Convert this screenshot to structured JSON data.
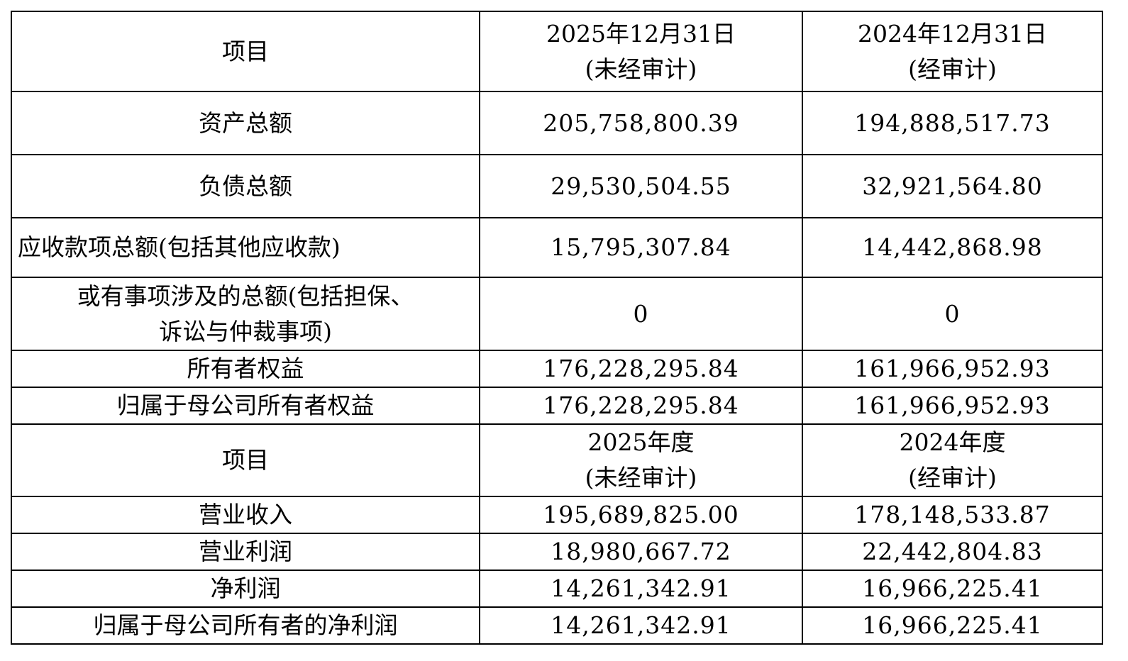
{
  "balance_header": {
    "item": "项目",
    "col1": "2025年12月31日\n(未经审计)",
    "col2": "2024年12月31日\n(经审计)"
  },
  "balance_rows": [
    {
      "item": "资产总额",
      "v2025": "205,758,800.39",
      "v2024": "194,888,517.73"
    },
    {
      "item": "负债总额",
      "v2025": "29,530,504.55",
      "v2024": "32,921,564.80"
    },
    {
      "item": "应收款项总额(包括其他应收款)",
      "v2025": "15,795,307.84",
      "v2024": "14,442,868.98"
    },
    {
      "item": "或有事项涉及的总额(包括担保、\n诉讼与仲裁事项)",
      "v2025": "0",
      "v2024": "0"
    },
    {
      "item": "所有者权益",
      "v2025": "176,228,295.84",
      "v2024": "161,966,952.93"
    },
    {
      "item": "归属于母公司所有者权益",
      "v2025": "176,228,295.84",
      "v2024": "161,966,952.93"
    }
  ],
  "income_header": {
    "item": "项目",
    "col1": "2025年度\n(未经审计)",
    "col2": "2024年度\n(经审计)"
  },
  "income_rows": [
    {
      "item": "营业收入",
      "v2025": "195,689,825.00",
      "v2024": "178,148,533.87"
    },
    {
      "item": "营业利润",
      "v2025": "18,980,667.72",
      "v2024": "22,442,804.83"
    },
    {
      "item": "净利润",
      "v2025": "14,261,342.91",
      "v2024": "16,966,225.41"
    },
    {
      "item": "归属于母公司所有者的净利润",
      "v2025": "14,261,342.91",
      "v2024": "16,966,225.41"
    }
  ]
}
